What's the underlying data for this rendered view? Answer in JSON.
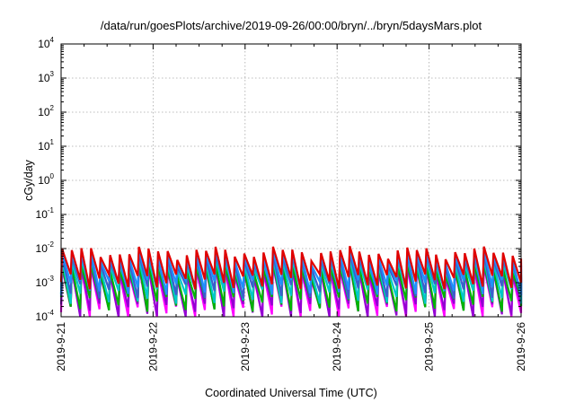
{
  "chart_data": {
    "type": "line",
    "title": "/data/run/goesPlots/archive/2019-09-26/00:00/bryn/../bryn/5daysMars.plot",
    "xlabel": "Coordinated Universal Time (UTC)",
    "ylabel": "cGy/day",
    "yscale": "log",
    "ylim": [
      0.0001,
      10000
    ],
    "xlim": [
      "2019-09-21",
      "2019-09-26"
    ],
    "x_tick_labels": [
      "2019-9-21",
      "2019-9-22",
      "2019-9-23",
      "2019-9-24",
      "2019-9-25",
      "2019-9-26"
    ],
    "y_ticks": [
      {
        "base": "10",
        "exp": "-4",
        "value": 0.0001
      },
      {
        "base": "10",
        "exp": "-3",
        "value": 0.001
      },
      {
        "base": "10",
        "exp": "-2",
        "value": 0.01
      },
      {
        "base": "10",
        "exp": "-1",
        "value": 0.1
      },
      {
        "base": "10",
        "exp": "0",
        "value": 1
      },
      {
        "base": "10",
        "exp": "1",
        "value": 10
      },
      {
        "base": "10",
        "exp": "2",
        "value": 100
      },
      {
        "base": "10",
        "exp": "3",
        "value": 1000
      },
      {
        "base": "10",
        "exp": "4",
        "value": 10000
      }
    ],
    "grid": true,
    "legend": "none",
    "sawtooth_period_hours": 2.5,
    "series": [
      {
        "color": "#ff00ff",
        "peak_base": 0.0025,
        "trough_base": 0.00018
      },
      {
        "color": "#9400d3",
        "peak_base": 0.0028,
        "trough_base": 0.00022
      },
      {
        "color": "#00b400",
        "peak_base": 0.0032,
        "trough_base": 0.00035
      },
      {
        "color": "#00c8c8",
        "peak_base": 0.0045,
        "trough_base": 0.0006
      },
      {
        "color": "#3a5fcd",
        "peak_base": 0.006,
        "trough_base": 0.00085
      },
      {
        "color": "#1e90ff",
        "peak_base": 0.0072,
        "trough_base": 0.0011
      },
      {
        "color": "#e00000",
        "peak_base": 0.0095,
        "trough_base": 0.0016
      }
    ]
  }
}
